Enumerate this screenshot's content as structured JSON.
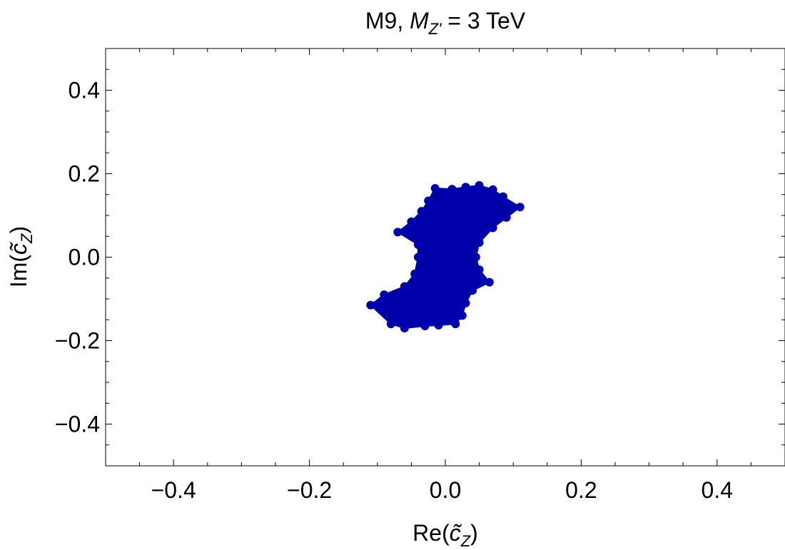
{
  "chart_data": {
    "type": "scatter",
    "title": {
      "prefix": "M9, ",
      "var": "M",
      "sub": "Z'",
      "suffix": " = 3 TeV"
    },
    "xlabel": {
      "prefix": "Re(",
      "var": "c̃",
      "sub": "Z",
      "suffix": ")"
    },
    "ylabel": {
      "prefix": "Im(",
      "var": "c̃",
      "sub": "Z",
      "suffix": ")"
    },
    "xlim": [
      -0.5,
      0.5
    ],
    "ylim": [
      -0.5,
      0.5
    ],
    "xticks": [
      {
        "v": -0.4,
        "label": "−0.4"
      },
      {
        "v": -0.2,
        "label": "−0.2"
      },
      {
        "v": 0.0,
        "label": "0.0"
      },
      {
        "v": 0.2,
        "label": "0.2"
      },
      {
        "v": 0.4,
        "label": "0.4"
      }
    ],
    "yticks": [
      {
        "v": 0.4,
        "label": "0.4"
      },
      {
        "v": 0.2,
        "label": "0.2"
      },
      {
        "v": 0.0,
        "label": "0.0"
      },
      {
        "v": -0.2,
        "label": "−0.2"
      },
      {
        "v": -0.4,
        "label": "−0.4"
      }
    ],
    "grid": false,
    "series": [
      {
        "color": "#0000aa",
        "region_boundary": [
          [
            -0.015,
            0.165
          ],
          [
            0.01,
            0.163
          ],
          [
            0.03,
            0.168
          ],
          [
            0.05,
            0.172
          ],
          [
            0.07,
            0.162
          ],
          [
            0.085,
            0.145
          ],
          [
            0.11,
            0.12
          ],
          [
            0.09,
            0.095
          ],
          [
            0.07,
            0.07
          ],
          [
            0.05,
            0.035
          ],
          [
            0.045,
            0.0
          ],
          [
            0.05,
            -0.03
          ],
          [
            0.065,
            -0.06
          ],
          [
            0.04,
            -0.08
          ],
          [
            0.03,
            -0.11
          ],
          [
            0.025,
            -0.14
          ],
          [
            0.015,
            -0.16
          ],
          [
            -0.01,
            -0.163
          ],
          [
            -0.03,
            -0.165
          ],
          [
            -0.06,
            -0.17
          ],
          [
            -0.08,
            -0.16
          ],
          [
            -0.11,
            -0.115
          ],
          [
            -0.09,
            -0.09
          ],
          [
            -0.06,
            -0.07
          ],
          [
            -0.045,
            -0.04
          ],
          [
            -0.04,
            0.0
          ],
          [
            -0.04,
            0.03
          ],
          [
            -0.07,
            0.06
          ],
          [
            -0.05,
            0.085
          ],
          [
            -0.035,
            0.11
          ],
          [
            -0.025,
            0.135
          ]
        ]
      }
    ]
  }
}
